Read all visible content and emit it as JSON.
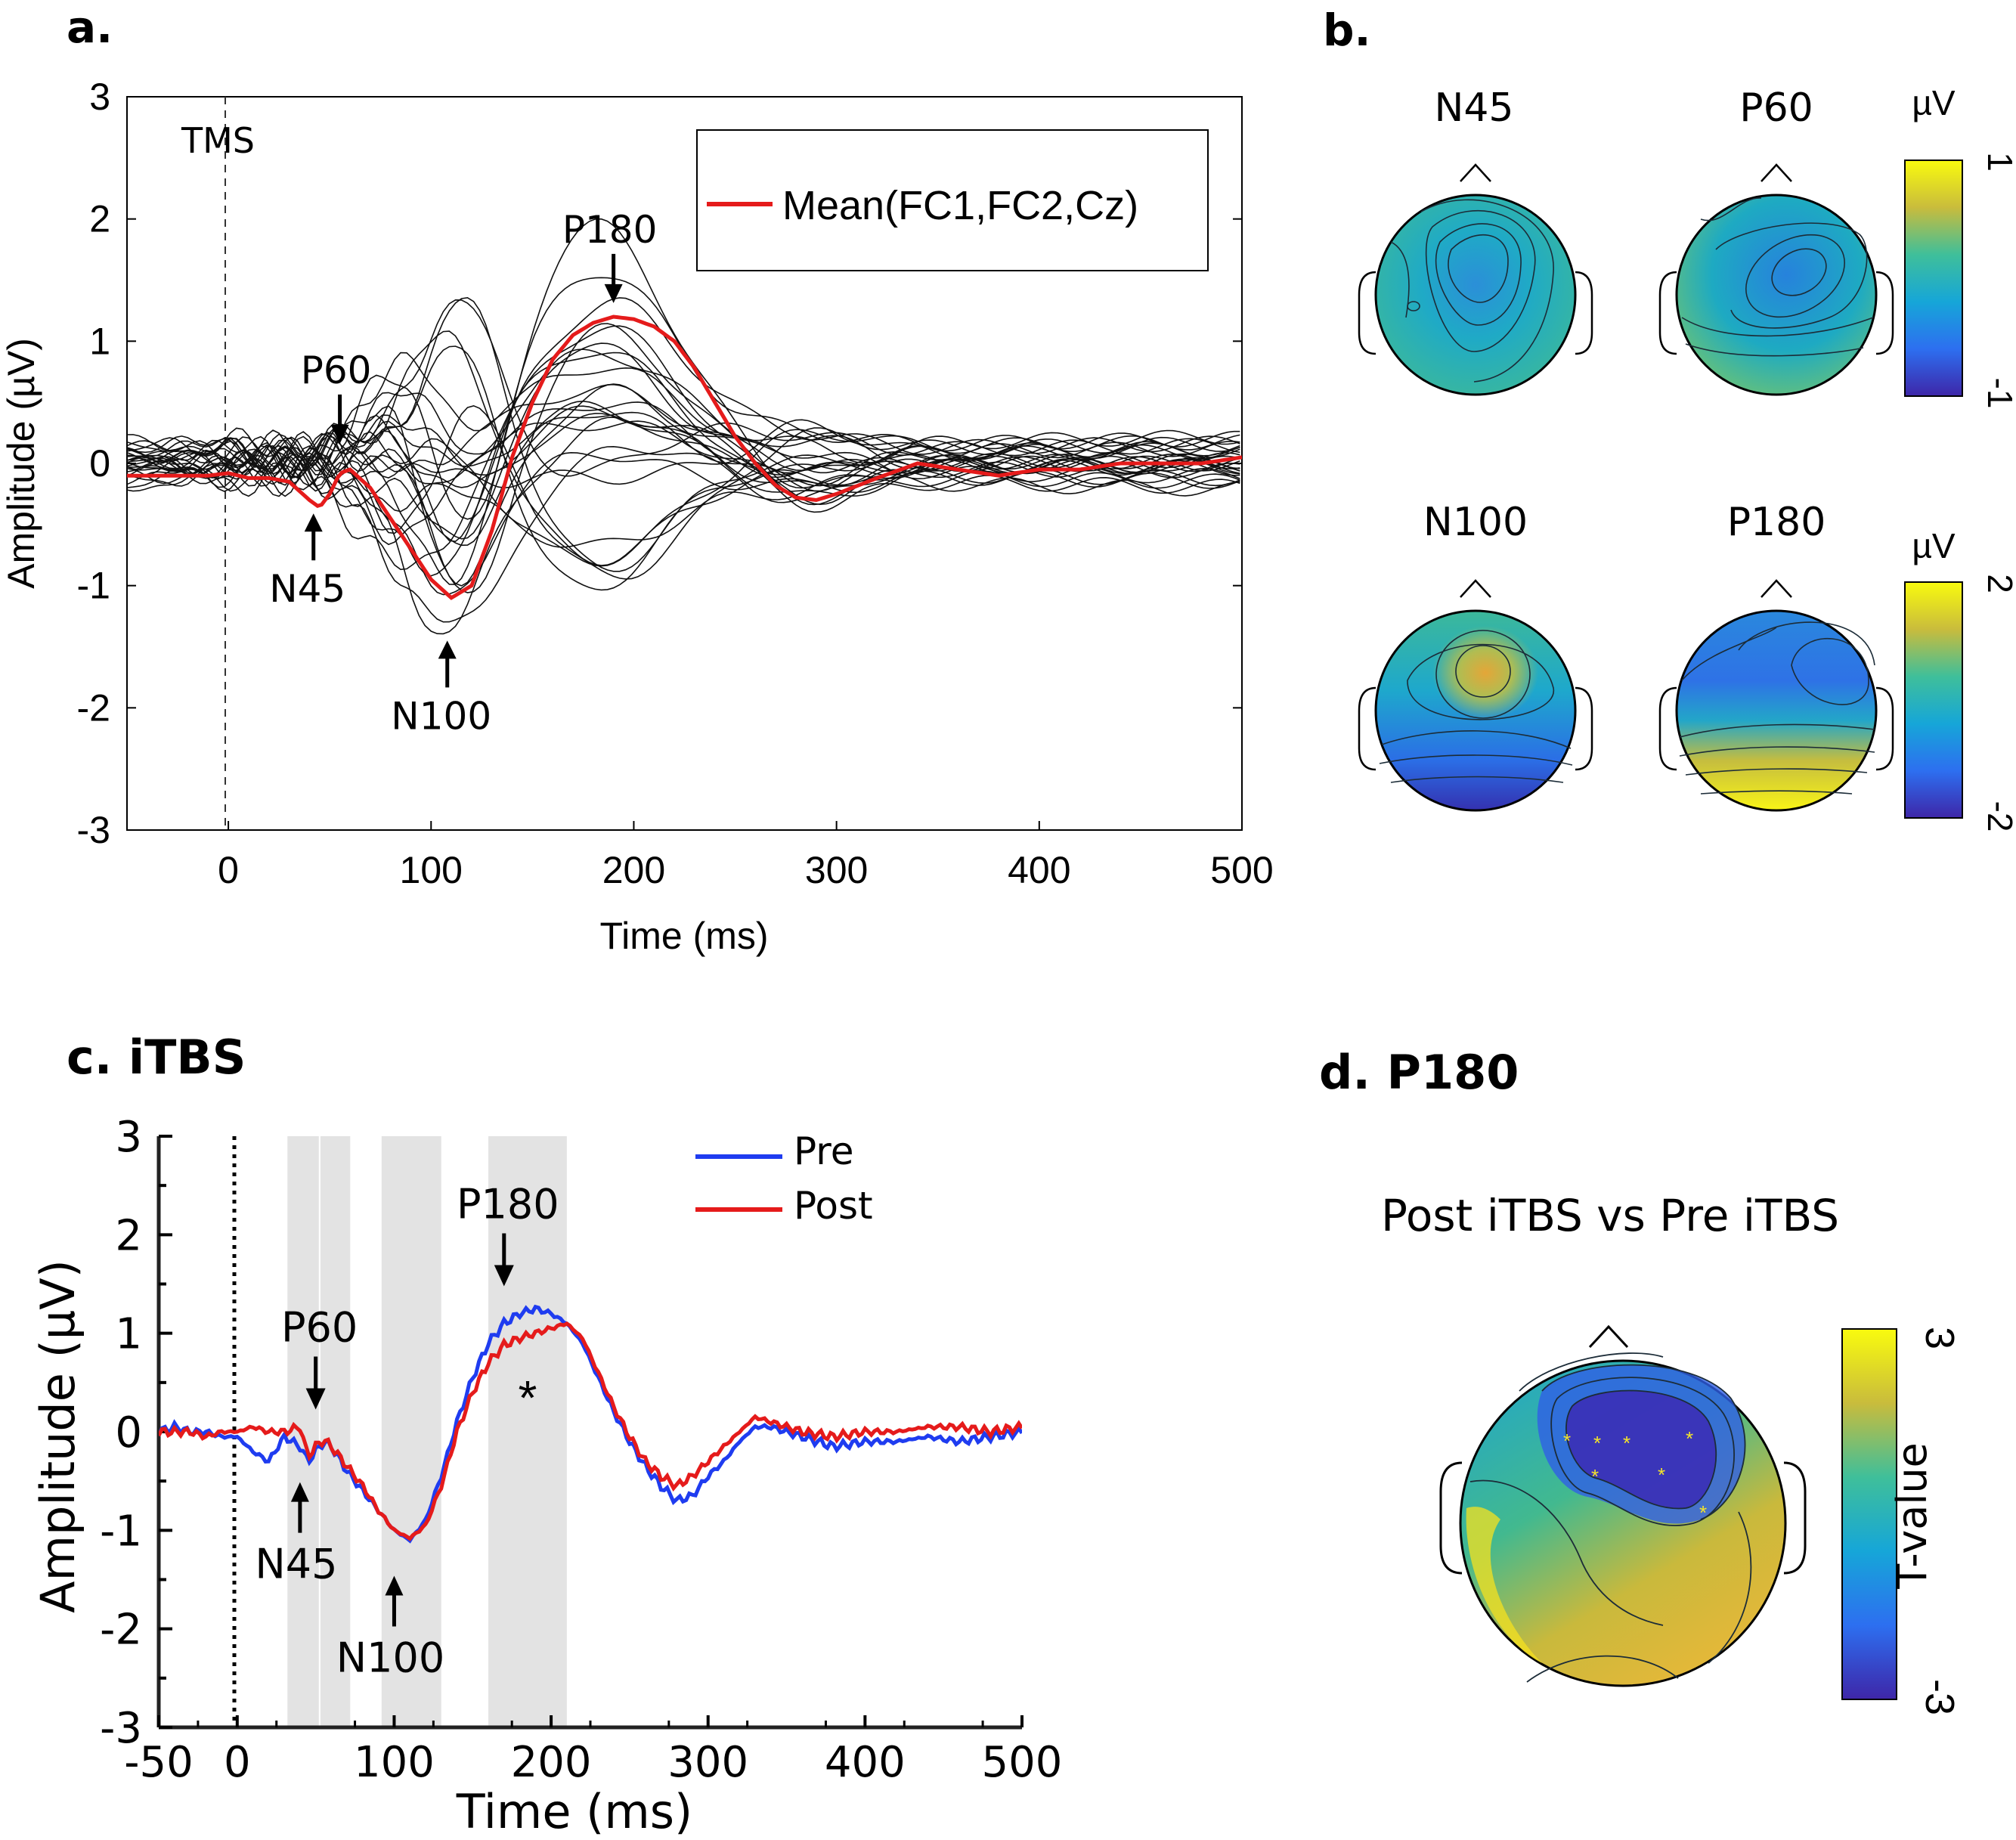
{
  "panels": {
    "a": {
      "label": "a."
    },
    "b": {
      "label": "b."
    },
    "c": {
      "label": "c. iTBS"
    },
    "d": {
      "label": "d. P180"
    }
  },
  "colors": {
    "red": "#e51b1b",
    "blue": "#1f3cf0",
    "shade": "#e3e3e3",
    "black": "#000000"
  },
  "chart_data": [
    {
      "id": "a",
      "type": "line",
      "title": "",
      "xlabel": "Time (ms)",
      "ylabel": "Amplitude (µV)",
      "xlim": [
        -50,
        500
      ],
      "ylim": [
        -3,
        3
      ],
      "xticks": [
        0,
        100,
        200,
        300,
        400,
        500
      ],
      "yticks": [
        -3,
        -2,
        -1,
        0,
        1,
        2,
        3
      ],
      "stim_label": "TMS",
      "legend": {
        "label": "Mean(FC1,FC2,Cz)",
        "position": "top-right"
      },
      "n_channel_traces": 28,
      "mean_series": {
        "name": "Mean(FC1,FC2,Cz)",
        "x": [
          -50,
          -30,
          -10,
          0,
          10,
          20,
          30,
          40,
          45,
          50,
          55,
          60,
          70,
          80,
          90,
          100,
          110,
          120,
          130,
          140,
          150,
          160,
          170,
          180,
          190,
          200,
          210,
          220,
          230,
          240,
          250,
          260,
          270,
          280,
          290,
          300,
          320,
          340,
          360,
          380,
          400,
          420,
          440,
          460,
          480,
          500
        ],
        "y": [
          -0.1,
          -0.1,
          -0.1,
          -0.08,
          -0.12,
          -0.12,
          -0.15,
          -0.3,
          -0.36,
          -0.25,
          -0.08,
          -0.05,
          -0.2,
          -0.45,
          -0.7,
          -0.95,
          -1.1,
          -1.0,
          -0.55,
          0.05,
          0.5,
          0.85,
          1.05,
          1.15,
          1.2,
          1.18,
          1.12,
          1.0,
          0.78,
          0.5,
          0.22,
          0.0,
          -0.18,
          -0.28,
          -0.3,
          -0.25,
          -0.12,
          0.0,
          -0.05,
          -0.1,
          -0.05,
          -0.05,
          0.0,
          0.0,
          0.0,
          0.05
        ]
      },
      "annotations": [
        {
          "label": "N45",
          "x": 42,
          "y": -0.36,
          "arrow": "up"
        },
        {
          "label": "P60",
          "x": 55,
          "y": 0.1,
          "arrow": "down"
        },
        {
          "label": "N100",
          "x": 108,
          "y": -1.4,
          "arrow": "up"
        },
        {
          "label": "P180",
          "x": 190,
          "y": 1.25,
          "arrow": "down"
        }
      ]
    },
    {
      "id": "c",
      "type": "line",
      "title": "c. iTBS",
      "xlabel": "Time (ms)",
      "ylabel": "Amplitude (µV)",
      "xlim": [
        -50,
        500
      ],
      "ylim": [
        -3,
        3
      ],
      "xticks": [
        -50,
        0,
        100,
        200,
        300,
        400,
        500
      ],
      "yticks": [
        -3,
        -2,
        -1,
        0,
        1,
        2,
        3
      ],
      "shaded_windows_ms": [
        [
          32,
          52
        ],
        [
          53,
          72
        ],
        [
          92,
          130
        ],
        [
          160,
          210
        ]
      ],
      "legend": {
        "position": "top-right"
      },
      "series": [
        {
          "name": "Pre",
          "color": "#1f3cf0",
          "x": [
            -50,
            -40,
            -30,
            -20,
            -10,
            0,
            10,
            20,
            30,
            40,
            45,
            50,
            55,
            60,
            70,
            80,
            90,
            100,
            110,
            120,
            130,
            140,
            150,
            160,
            170,
            180,
            190,
            200,
            210,
            220,
            230,
            240,
            250,
            260,
            270,
            280,
            290,
            300,
            310,
            320,
            330,
            340,
            360,
            380,
            400,
            420,
            440,
            460,
            480,
            500
          ],
          "y": [
            0.0,
            0.05,
            0.0,
            0.0,
            -0.05,
            -0.05,
            -0.2,
            -0.3,
            -0.05,
            -0.15,
            -0.3,
            -0.2,
            -0.1,
            -0.15,
            -0.4,
            -0.6,
            -0.8,
            -1.0,
            -1.1,
            -0.9,
            -0.45,
            0.1,
            0.55,
            0.9,
            1.1,
            1.2,
            1.25,
            1.2,
            1.1,
            0.9,
            0.55,
            0.2,
            -0.1,
            -0.35,
            -0.55,
            -0.7,
            -0.65,
            -0.45,
            -0.3,
            -0.1,
            0.05,
            0.05,
            -0.05,
            -0.15,
            -0.1,
            -0.1,
            -0.05,
            -0.1,
            -0.05,
            0.0
          ]
        },
        {
          "name": "Post",
          "color": "#e51b1b",
          "x": [
            -50,
            -40,
            -30,
            -20,
            -10,
            0,
            10,
            20,
            30,
            40,
            45,
            50,
            55,
            60,
            70,
            80,
            90,
            100,
            110,
            120,
            130,
            140,
            150,
            160,
            170,
            180,
            190,
            200,
            210,
            220,
            230,
            240,
            250,
            260,
            270,
            280,
            290,
            300,
            310,
            320,
            330,
            340,
            360,
            380,
            400,
            420,
            440,
            460,
            480,
            500
          ],
          "y": [
            0.0,
            0.0,
            0.0,
            -0.05,
            0.0,
            0.0,
            0.05,
            0.0,
            0.0,
            0.05,
            -0.25,
            -0.15,
            -0.08,
            -0.15,
            -0.35,
            -0.55,
            -0.8,
            -1.0,
            -1.08,
            -0.95,
            -0.55,
            0.0,
            0.4,
            0.7,
            0.88,
            0.95,
            1.0,
            1.05,
            1.1,
            0.95,
            0.6,
            0.25,
            -0.05,
            -0.3,
            -0.45,
            -0.55,
            -0.45,
            -0.3,
            -0.15,
            0.0,
            0.15,
            0.1,
            0.0,
            -0.05,
            0.0,
            0.0,
            0.05,
            0.05,
            0.0,
            0.05
          ]
        }
      ],
      "significance": {
        "label": "*",
        "x": 185,
        "y": 0.6
      },
      "annotations": [
        {
          "label": "N45",
          "x": 40,
          "y": -0.45,
          "arrow": "up"
        },
        {
          "label": "P60",
          "x": 50,
          "y": 0.15,
          "arrow": "down"
        },
        {
          "label": "N100",
          "x": 100,
          "y": -1.4,
          "arrow": "up"
        },
        {
          "label": "P180",
          "x": 170,
          "y": 1.4,
          "arrow": "down"
        }
      ]
    },
    {
      "id": "b",
      "type": "heatmap",
      "subtype": "scalp topography",
      "maps": [
        {
          "label": "N45",
          "colorbar": "top"
        },
        {
          "label": "P60",
          "colorbar": "top"
        },
        {
          "label": "N100",
          "colorbar": "bottom"
        },
        {
          "label": "P180",
          "colorbar": "bottom"
        }
      ],
      "colorbars": [
        {
          "unit": "µV",
          "max": "1",
          "min": "-1"
        },
        {
          "unit": "µV",
          "max": "2",
          "min": "-2"
        }
      ]
    },
    {
      "id": "d",
      "type": "heatmap",
      "subtype": "scalp topography",
      "subtitle": "Post iTBS vs Pre iTBS",
      "colorbar": {
        "label": "T-value",
        "max": "3",
        "min": "-3"
      },
      "significant_electrodes": 7
    }
  ]
}
